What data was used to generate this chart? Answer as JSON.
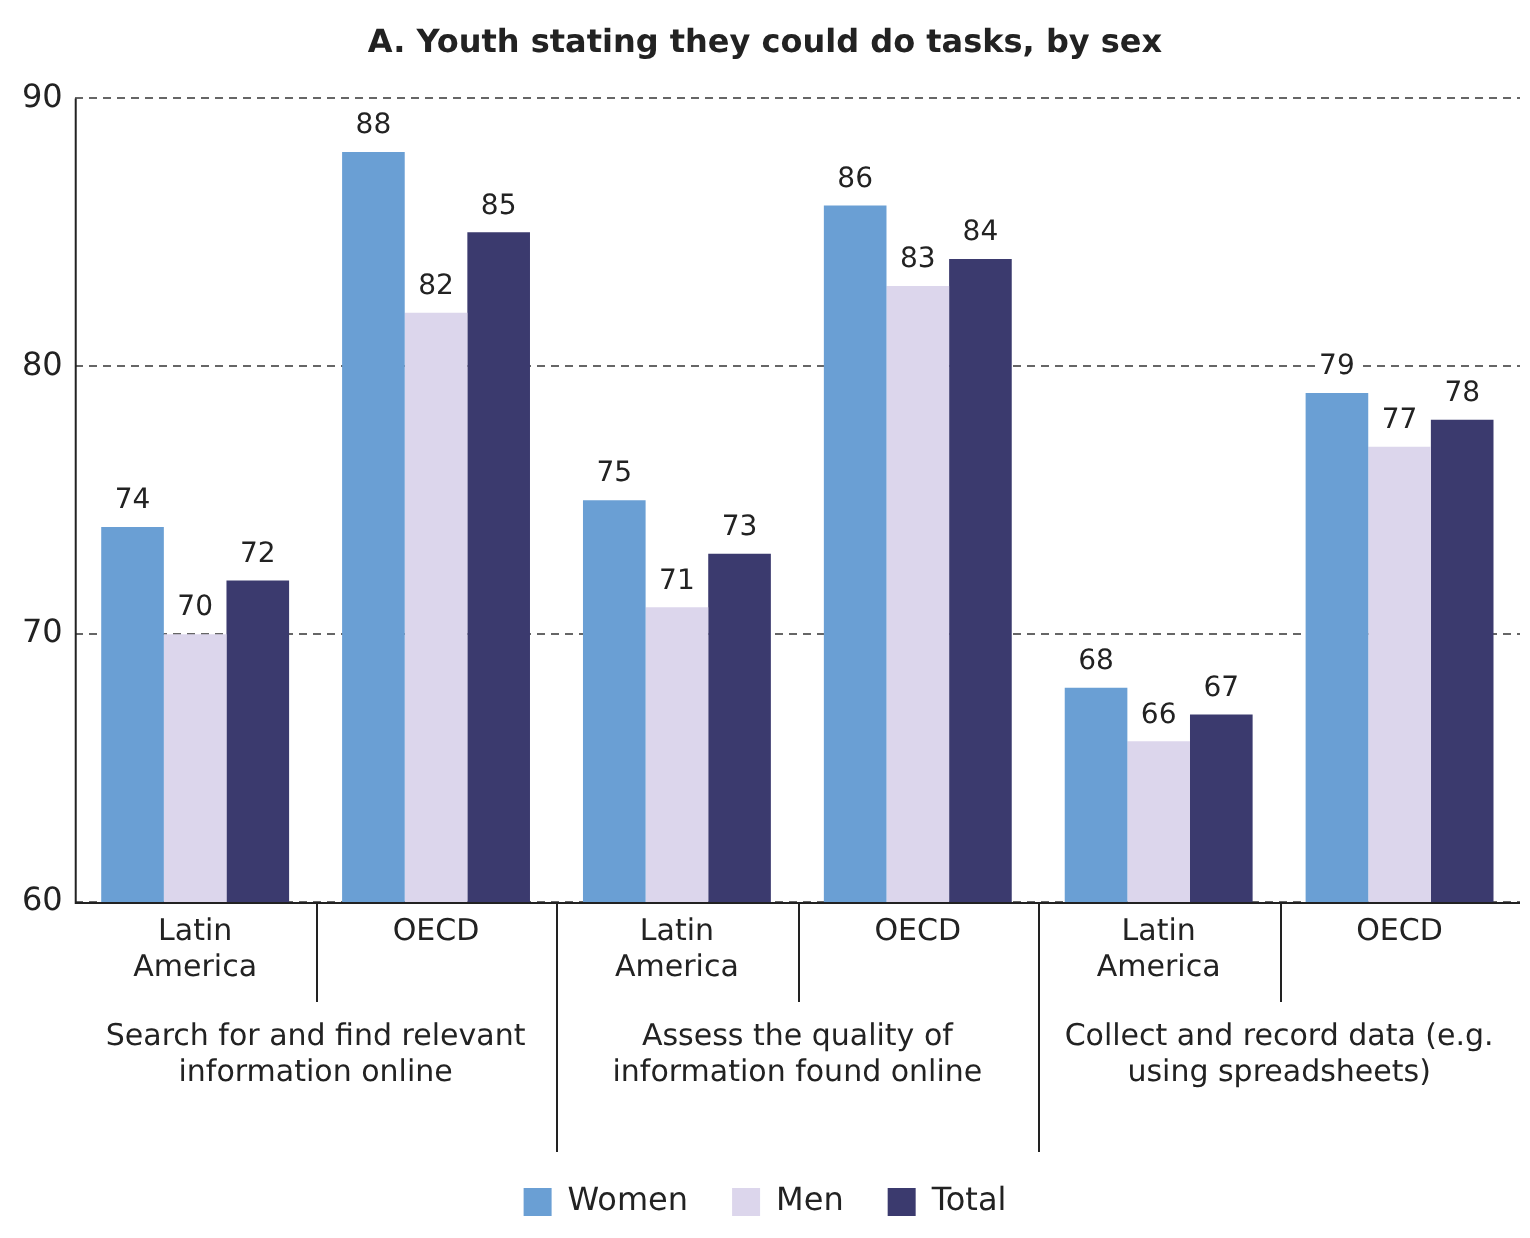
{
  "chart_data": {
    "type": "bar",
    "title": "A. Youth stating they could do tasks, by sex",
    "categories": [
      "Latin America",
      "OECD",
      "Latin America",
      "OECD",
      "Latin America",
      "OECD"
    ],
    "series": [
      {
        "name": "Women",
        "color": "#6a9fd4",
        "values": [
          74,
          88,
          75,
          86,
          68,
          79
        ]
      },
      {
        "name": "Men",
        "color": "#dcd6ec",
        "values": [
          70,
          82,
          71,
          83,
          66,
          77
        ]
      },
      {
        "name": "Total",
        "color": "#3b3a6e",
        "values": [
          72,
          85,
          73,
          84,
          67,
          78
        ]
      }
    ],
    "annotations": [
      "Search for and find relevant information online",
      "Assess the quality of information found online",
      "Collect and record data (e.g. using spreadsheets)"
    ],
    "ylim": [
      60,
      90
    ],
    "yticks": [
      60,
      70,
      80,
      90
    ],
    "grid": "y",
    "legend": "bottom",
    "data_labels": true
  }
}
